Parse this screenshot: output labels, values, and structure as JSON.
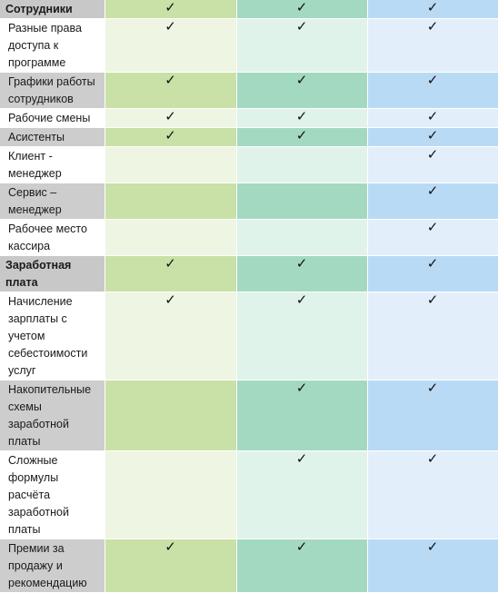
{
  "check_glyph": "✓",
  "colors": {
    "col1_light": "#eef5e3",
    "col1_dark": "#c9e0a7",
    "col2_light": "#e0f3ea",
    "col2_dark": "#a3d9c0",
    "col3_light": "#e2effb",
    "col3_dark": "#b9daf5",
    "label_dark": "#cdcdcd"
  },
  "rows": [
    {
      "label": "Сотрудники",
      "section": true,
      "checks": [
        true,
        true,
        true
      ]
    },
    {
      "label": "Разные права доступа к программе",
      "section": false,
      "checks": [
        true,
        true,
        true
      ]
    },
    {
      "label": "Графики работы сотрудников",
      "section": false,
      "checks": [
        true,
        true,
        true
      ]
    },
    {
      "label": "Рабочие смены",
      "section": false,
      "checks": [
        true,
        true,
        true
      ]
    },
    {
      "label": "Асистенты",
      "section": false,
      "checks": [
        true,
        true,
        true
      ]
    },
    {
      "label": "Клиент - менеджер",
      "section": false,
      "checks": [
        false,
        false,
        true
      ]
    },
    {
      "label": "Сервис – менеджер",
      "section": false,
      "checks": [
        false,
        false,
        true
      ]
    },
    {
      "label": "Рабочее место кассира",
      "section": false,
      "checks": [
        false,
        false,
        true
      ]
    },
    {
      "label": "Заработная плата",
      "section": true,
      "checks": [
        true,
        true,
        true
      ]
    },
    {
      "label": "Начисление зарплаты с учетом себестоимости услуг",
      "section": false,
      "checks": [
        true,
        true,
        true
      ]
    },
    {
      "label": "Накопительные схемы заработной платы",
      "section": false,
      "checks": [
        false,
        true,
        true
      ]
    },
    {
      "label": "Сложные формулы расчёта заработной платы",
      "section": false,
      "checks": [
        false,
        true,
        true
      ]
    },
    {
      "label": "Премии за продажу и рекомендацию",
      "section": false,
      "checks": [
        true,
        true,
        true
      ]
    }
  ]
}
